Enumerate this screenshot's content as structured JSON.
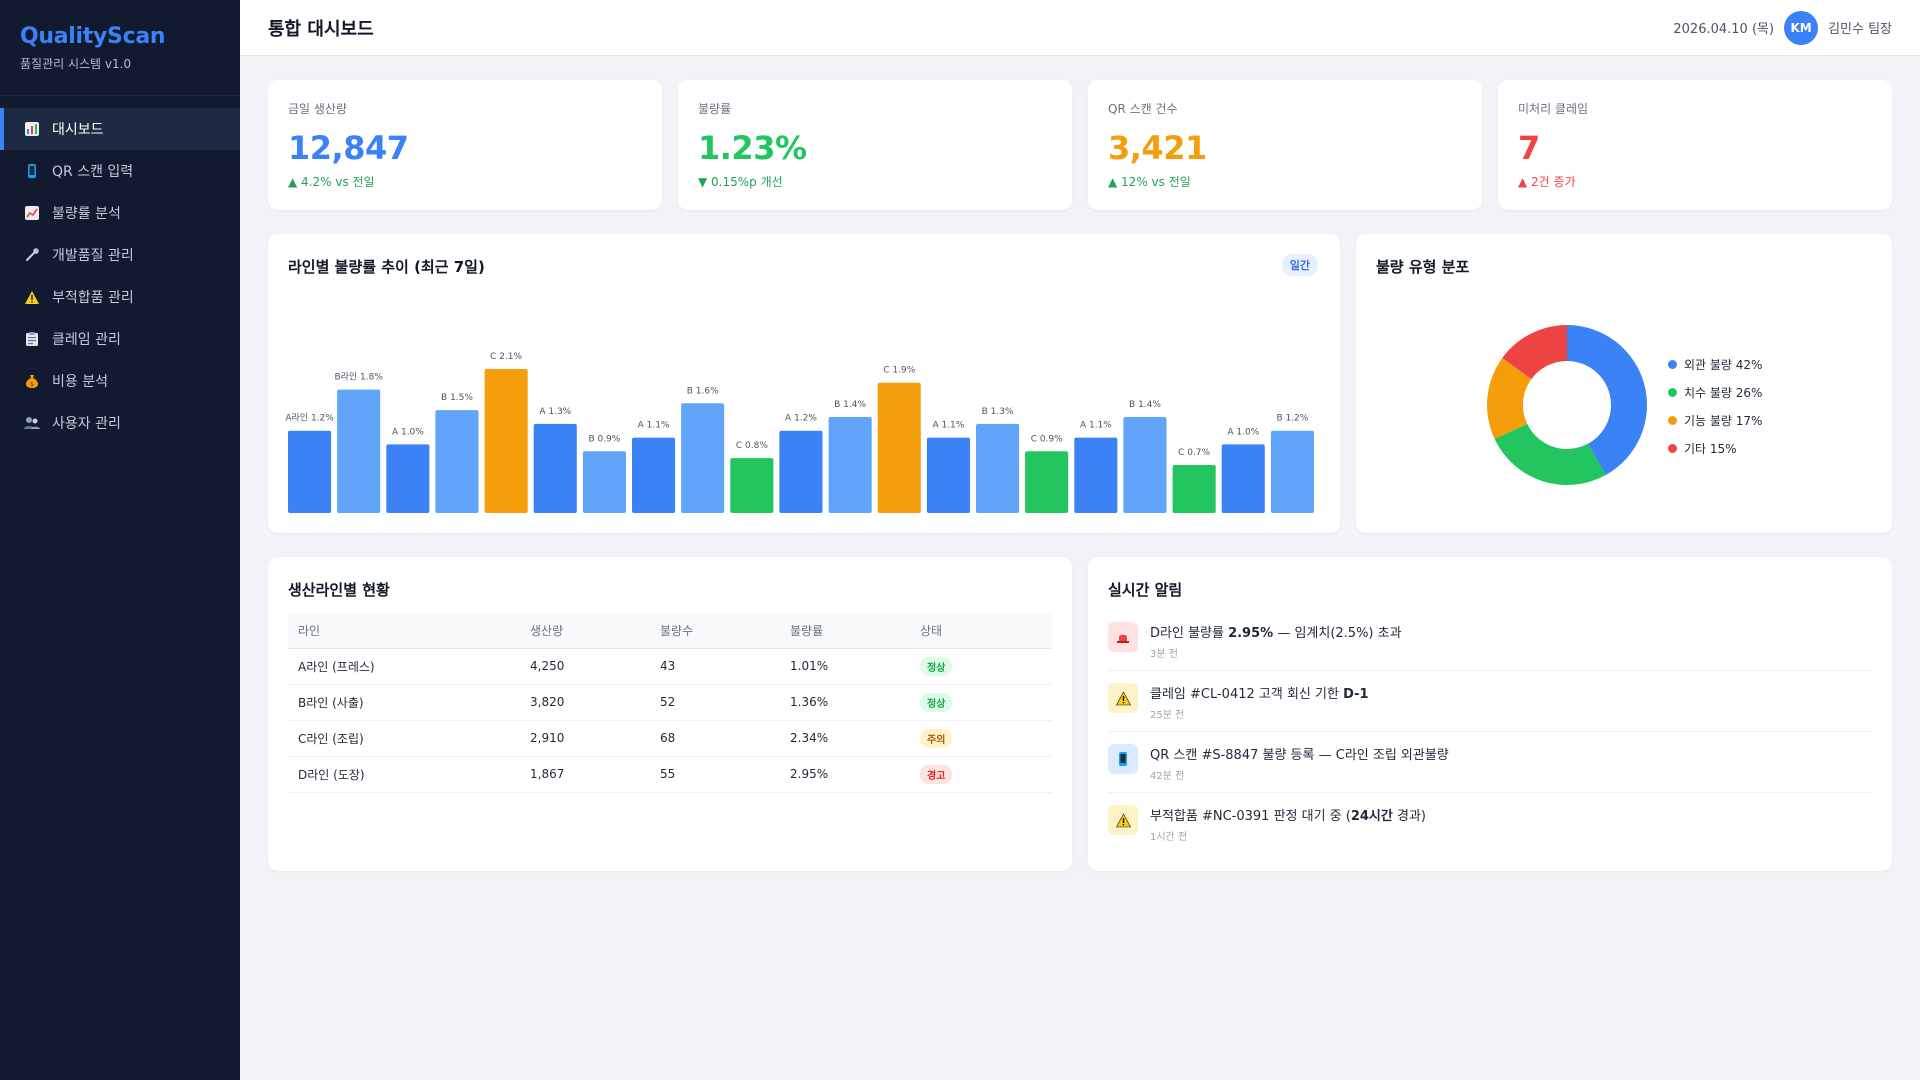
{
  "brand": {
    "title": "QualityScan",
    "subtitle": "품질관리 시스템 v1.0"
  },
  "nav": [
    {
      "label": "대시보드",
      "icon": "bar-chart-icon",
      "active": true
    },
    {
      "label": "QR 스캔 입력",
      "icon": "mobile-phone-icon",
      "active": false
    },
    {
      "label": "불량률 분석",
      "icon": "trend-chart-icon",
      "active": false
    },
    {
      "label": "개발품질 관리",
      "icon": "wrench-icon",
      "active": false
    },
    {
      "label": "부적합품 관리",
      "icon": "warning-icon",
      "active": false
    },
    {
      "label": "클레임 관리",
      "icon": "clipboard-icon",
      "active": false
    },
    {
      "label": "비용 분석",
      "icon": "money-bag-icon",
      "active": false
    },
    {
      "label": "사용자 관리",
      "icon": "users-icon",
      "active": false
    }
  ],
  "header": {
    "title": "통합 대시보드",
    "date": "2026.04.10 (목)",
    "avatar_initials": "KM",
    "user_name": "김민수 팀장"
  },
  "kpis": [
    {
      "label": "금일 생산량",
      "value": "12,847",
      "change": "▲ 4.2% vs 전일",
      "value_color": "#3b82f6",
      "change_color": "#22a35a"
    },
    {
      "label": "불량률",
      "value": "1.23%",
      "change": "▼ 0.15%p 개선",
      "value_color": "#22c55e",
      "change_color": "#22a35a"
    },
    {
      "label": "QR 스캔 건수",
      "value": "3,421",
      "change": "▲ 12% vs 전일",
      "value_color": "#f59e0b",
      "change_color": "#22a35a"
    },
    {
      "label": "미처리 클레임",
      "value": "7",
      "change": "▲ 2건 증가",
      "value_color": "#ef4444",
      "change_color": "#ef4444"
    }
  ],
  "bar_chart": {
    "title": "라인별 불량률 추이 (최근 7일)",
    "badge": "일간"
  },
  "chart_data": [
    {
      "type": "bar",
      "labels": [
        "A라인 1.2%",
        "B라인 1.8%",
        "A 1.0%",
        "B 1.5%",
        "C 2.1%",
        "A 1.3%",
        "B 0.9%",
        "A 1.1%",
        "B 1.6%",
        "C 0.8%",
        "A 1.2%",
        "B 1.4%",
        "C 1.9%",
        "A 1.1%",
        "B 1.3%",
        "C 0.9%",
        "A 1.1%",
        "B 1.4%",
        "C 0.7%",
        "A 1.0%",
        "B 1.2%"
      ],
      "lines": [
        "A",
        "B",
        "A",
        "B",
        "C",
        "A",
        "B",
        "A",
        "B",
        "C",
        "A",
        "B",
        "C",
        "A",
        "B",
        "C",
        "A",
        "B",
        "C",
        "A",
        "B"
      ],
      "values": [
        1.2,
        1.8,
        1.0,
        1.5,
        2.1,
        1.3,
        0.9,
        1.1,
        1.6,
        0.8,
        1.2,
        1.4,
        1.9,
        1.1,
        1.3,
        0.9,
        1.1,
        1.4,
        0.7,
        1.0,
        1.2
      ],
      "bar_colors": [
        "#3b82f6",
        "#60a5fa",
        "#3b82f6",
        "#60a5fa",
        "#f59e0b",
        "#3b82f6",
        "#60a5fa",
        "#3b82f6",
        "#60a5fa",
        "#22c55e",
        "#3b82f6",
        "#60a5fa",
        "#f59e0b",
        "#3b82f6",
        "#60a5fa",
        "#22c55e",
        "#3b82f6",
        "#60a5fa",
        "#22c55e",
        "#3b82f6",
        "#60a5fa"
      ],
      "title": "라인별 불량률 추이 (최근 7일)",
      "ylim": [
        0,
        2.1
      ]
    },
    {
      "type": "pie",
      "title": "불량 유형 분포",
      "series": [
        {
          "name": "외관 불량",
          "label": "외관 불량 42%",
          "value": 42,
          "color": "#3b82f6"
        },
        {
          "name": "치수 불량",
          "label": "치수 불량 26%",
          "value": 26,
          "color": "#22c55e"
        },
        {
          "name": "기능 불량",
          "label": "기능 불량 17%",
          "value": 17,
          "color": "#f59e0b"
        },
        {
          "name": "기타",
          "label": "기타 15%",
          "value": 15,
          "color": "#ef4444"
        }
      ]
    }
  ],
  "donut": {
    "title": "불량 유형 분포"
  },
  "table": {
    "title": "생산라인별 현황",
    "columns": [
      "라인",
      "생산량",
      "불량수",
      "불량률",
      "상태"
    ],
    "rows": [
      {
        "line": "A라인 (프레스)",
        "production": "4,250",
        "defects": "43",
        "rate": "1.01%",
        "status": "정상",
        "status_bg": "#dcfce7",
        "status_color": "#16a34a"
      },
      {
        "line": "B라인 (사출)",
        "production": "3,820",
        "defects": "52",
        "rate": "1.36%",
        "status": "정상",
        "status_bg": "#dcfce7",
        "status_color": "#16a34a"
      },
      {
        "line": "C라인 (조립)",
        "production": "2,910",
        "defects": "68",
        "rate": "2.34%",
        "status": "주의",
        "status_bg": "#fef3c7",
        "status_color": "#b45309"
      },
      {
        "line": "D라인 (도장)",
        "production": "1,867",
        "defects": "55",
        "rate": "2.95%",
        "status": "경고",
        "status_bg": "#fee2e2",
        "status_color": "#dc2626"
      }
    ]
  },
  "alerts": {
    "title": "실시간 알림",
    "items": [
      {
        "icon": "siren-icon",
        "icon_bg": "#fee2e2",
        "pre": "D라인 불량률 ",
        "bold": "2.95%",
        "post": " — 임계치(2.5%) 초과",
        "time": "3분 전"
      },
      {
        "icon": "warning-icon",
        "icon_bg": "#fef3c7",
        "pre": "클레임 #CL-0412 고객 회신 기한 ",
        "bold": "D-1",
        "post": "",
        "time": "25분 전"
      },
      {
        "icon": "mobile-phone-icon",
        "icon_bg": "#dbeafe",
        "pre": "QR 스캔 #S-8847 불량 등록 — C라인 조립 외관불량",
        "bold": "",
        "post": "",
        "time": "42분 전"
      },
      {
        "icon": "warning-icon",
        "icon_bg": "#fef3c7",
        "pre": "부적합품 #NC-0391 판정 대기 중 (",
        "bold": "24시간",
        "post": " 경과)",
        "time": "1시간 전"
      }
    ]
  }
}
